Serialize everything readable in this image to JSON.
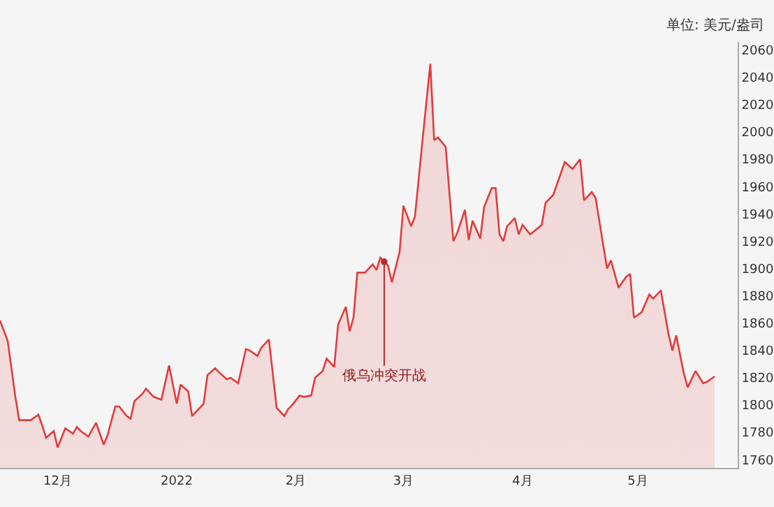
{
  "chart_data": {
    "type": "area",
    "ylabel": "单位: 美元/盎司",
    "x": [
      "2021-11-16",
      "2021-11-18",
      "2021-11-20",
      "2021-11-21",
      "2021-11-24",
      "2021-11-26",
      "2021-11-27",
      "2021-11-28",
      "2021-11-30",
      "2021-12-01",
      "2021-12-03",
      "2021-12-05",
      "2021-12-06",
      "2021-12-07",
      "2021-12-09",
      "2021-12-11",
      "2021-12-13",
      "2021-12-14",
      "2021-12-16",
      "2021-12-17",
      "2021-12-19",
      "2021-12-20",
      "2021-12-21",
      "2021-12-23",
      "2021-12-24",
      "2021-12-26",
      "2021-12-28",
      "2021-12-30",
      "2022-01-01",
      "2022-01-02",
      "2022-01-04",
      "2022-01-05",
      "2022-01-08",
      "2022-01-09",
      "2022-01-11",
      "2022-01-12",
      "2022-01-14",
      "2022-01-15",
      "2022-01-17",
      "2022-01-19",
      "2022-01-20",
      "2022-01-22",
      "2022-01-23",
      "2022-01-25",
      "2022-01-27",
      "2022-01-29",
      "2022-01-30",
      "2022-01-31",
      "2022-02-02",
      "2022-02-03",
      "2022-02-05",
      "2022-02-06",
      "2022-02-08",
      "2022-02-09",
      "2022-02-11",
      "2022-02-12",
      "2022-02-14",
      "2022-02-15",
      "2022-02-16",
      "2022-02-17",
      "2022-02-19",
      "2022-02-21",
      "2022-02-22",
      "2022-02-23",
      "2022-02-24",
      "2022-02-25",
      "2022-02-26",
      "2022-02-28",
      "2022-03-01",
      "2022-03-03",
      "2022-03-04",
      "2022-03-06",
      "2022-03-08",
      "2022-03-09",
      "2022-03-10",
      "2022-03-12",
      "2022-03-14",
      "2022-03-15",
      "2022-03-17",
      "2022-03-18",
      "2022-03-19",
      "2022-03-21",
      "2022-03-22",
      "2022-03-24",
      "2022-03-25",
      "2022-03-26",
      "2022-03-27",
      "2022-03-28",
      "2022-03-30",
      "2022-03-31",
      "2022-04-01",
      "2022-04-03",
      "2022-04-06",
      "2022-04-07",
      "2022-04-09",
      "2022-04-12",
      "2022-04-14",
      "2022-04-16",
      "2022-04-17",
      "2022-04-19",
      "2022-04-20",
      "2022-04-23",
      "2022-04-24",
      "2022-04-26",
      "2022-04-28",
      "2022-04-29",
      "2022-04-30",
      "2022-05-02",
      "2022-05-04",
      "2022-05-05",
      "2022-05-07",
      "2022-05-09",
      "2022-05-10",
      "2022-05-11",
      "2022-05-13",
      "2022-05-14",
      "2022-05-16",
      "2022-05-18",
      "2022-05-19",
      "2022-05-21"
    ],
    "series": [
      {
        "color": "#e03c3c",
        "values": [
          1862,
          1847,
          1806,
          1789,
          1789,
          1793,
          1785,
          1776,
          1781,
          1769,
          1783,
          1779,
          1784,
          1781,
          1777,
          1787,
          1771,
          1778,
          1799,
          1799,
          1792,
          1790,
          1803,
          1808,
          1812,
          1806,
          1804,
          1829,
          1801,
          1815,
          1810,
          1792,
          1801,
          1822,
          1827,
          1824,
          1819,
          1820,
          1816,
          1841,
          1840,
          1836,
          1842,
          1848,
          1798,
          1792,
          1797,
          1800,
          1807,
          1806,
          1807,
          1820,
          1825,
          1834,
          1828,
          1859,
          1872,
          1854,
          1864,
          1897,
          1897,
          1903,
          1899,
          1908,
          1905,
          1902,
          1890,
          1912,
          1946,
          1931,
          1938,
          1995,
          2050,
          1994,
          1996,
          1989,
          1920,
          1926,
          1943,
          1921,
          1935,
          1922,
          1945,
          1959,
          1959,
          1925,
          1920,
          1931,
          1937,
          1925,
          1932,
          1925,
          1932,
          1948,
          1954,
          1978,
          1973,
          1980,
          1950,
          1956,
          1952,
          1900,
          1906,
          1886,
          1894,
          1896,
          1864,
          1868,
          1881,
          1878,
          1884,
          1852,
          1840,
          1851,
          1823,
          1813,
          1825,
          1816,
          1817,
          1821
        ]
      }
    ],
    "xlim": [
      "2021-11-16",
      "2022-05-27"
    ],
    "xticks": [
      {
        "value": "2021-12-01",
        "label": "12月"
      },
      {
        "value": "2022-01-01",
        "label": "2022"
      },
      {
        "value": "2022-02-01",
        "label": "2月"
      },
      {
        "value": "2022-03-01",
        "label": "3月"
      },
      {
        "value": "2022-04-01",
        "label": "4月"
      },
      {
        "value": "2022-05-01",
        "label": "5月"
      }
    ],
    "ylim": [
      1754,
      2066
    ],
    "yticks": [
      1760,
      1780,
      1800,
      1820,
      1840,
      1860,
      1880,
      1900,
      1920,
      1940,
      1960,
      1980,
      2000,
      2020,
      2040,
      2060
    ],
    "grid": false,
    "marker": "none",
    "line_style": "solid",
    "annotations": [
      {
        "text": "俄乌冲突开战",
        "x": "2022-02-24",
        "y": 1905
      }
    ]
  }
}
